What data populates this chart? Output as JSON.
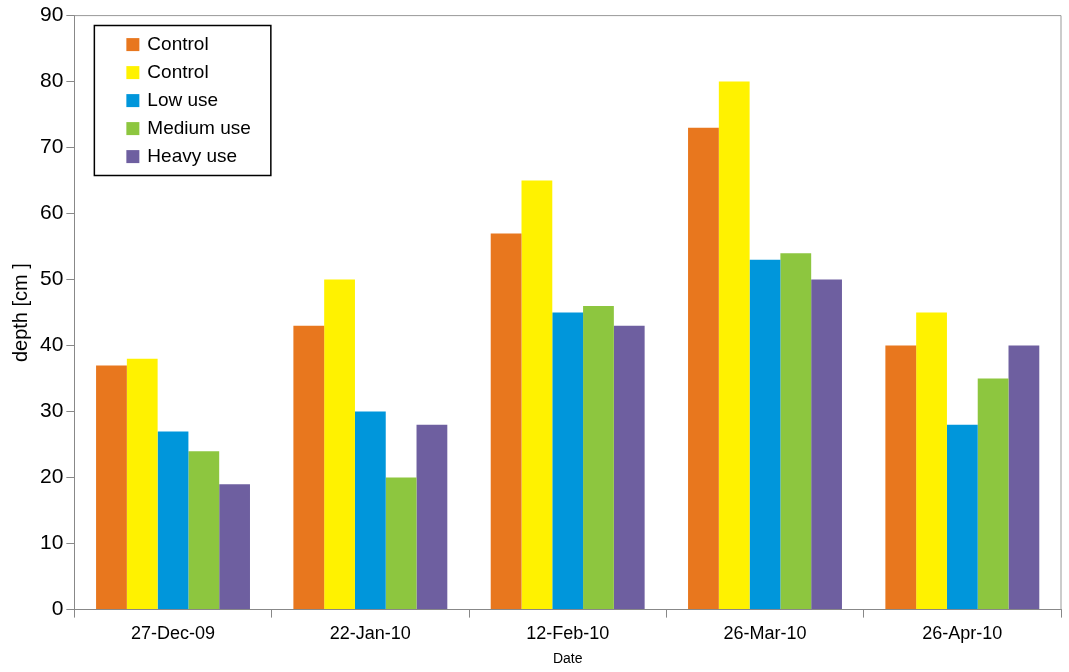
{
  "chart_data": {
    "type": "bar",
    "xlabel": "Date",
    "ylabel": "depth [cm ]",
    "categories": [
      "27-Dec-09",
      "22-Jan-10",
      "12-Feb-10",
      "26-Mar-10",
      "26-Apr-10"
    ],
    "series": [
      {
        "name": "Control",
        "color": "#e8771e",
        "values": [
          37,
          43,
          57,
          73,
          40
        ]
      },
      {
        "name": "Control",
        "color": "#fff200",
        "values": [
          38,
          50,
          65,
          80,
          45
        ]
      },
      {
        "name": "Low use",
        "color": "#0096db",
        "values": [
          27,
          30,
          45,
          53,
          28
        ]
      },
      {
        "name": "Medium use",
        "color": "#8dc63f",
        "values": [
          24,
          20,
          46,
          54,
          35
        ]
      },
      {
        "name": "Heavy use",
        "color": "#6e5fa0",
        "values": [
          19,
          28,
          43,
          50,
          40
        ]
      }
    ],
    "ylim": [
      0,
      90
    ],
    "yticks": [
      0,
      10,
      20,
      30,
      40,
      50,
      60,
      70,
      80,
      90
    ],
    "grid": false,
    "legend": "top left"
  }
}
